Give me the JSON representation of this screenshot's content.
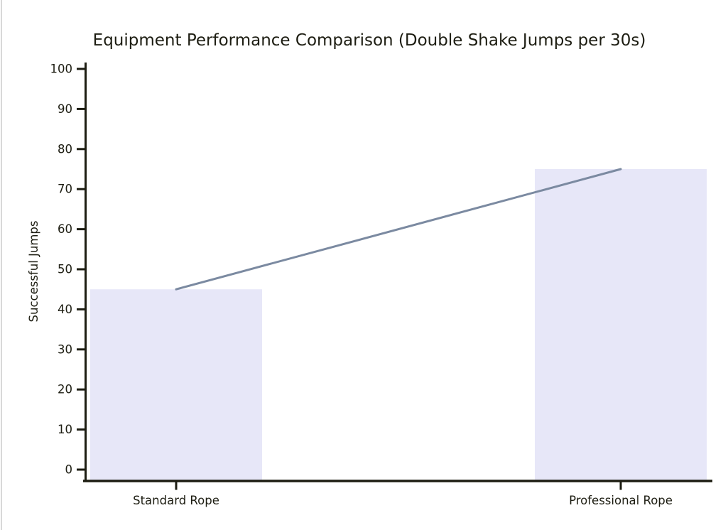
{
  "chart_data": {
    "type": "bar",
    "title": "Equipment Performance Comparison (Double Shake Jumps per 30s)",
    "xlabel": "",
    "ylabel": "Successful Jumps",
    "categories": [
      "Standard Rope",
      "Professional Rope"
    ],
    "values": [
      45,
      75
    ],
    "ylim": [
      0,
      100
    ],
    "yticks": [
      0,
      10,
      20,
      30,
      40,
      50,
      60,
      70,
      80,
      90,
      100
    ],
    "grid": false,
    "legend": false,
    "trend_line": {
      "description": "straight line connecting the tops of the two bars",
      "from_value": 45,
      "to_value": 75
    }
  },
  "colors": {
    "background": "#ffffff",
    "window_border": "#d9d9d9",
    "axis": "#1d1d12",
    "text": "#1d1d12",
    "bar_fill": "#e7e7f8",
    "trend_line": "#7b8aa1"
  }
}
